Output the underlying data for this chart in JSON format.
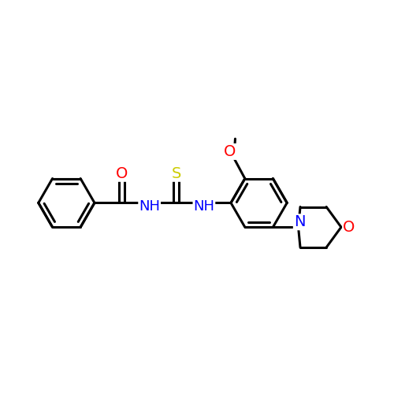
{
  "bg_color": "#ffffff",
  "bond_color": "#000000",
  "bond_width": 2.2,
  "atom_colors": {
    "O": "#ff0000",
    "N": "#0000ff",
    "S": "#cccc00",
    "C": "#000000"
  },
  "font_size": 14,
  "fig_size": [
    5.0,
    5.0
  ],
  "dpi": 100,
  "xlim": [
    0.0,
    10.0
  ],
  "ylim": [
    2.5,
    7.5
  ]
}
